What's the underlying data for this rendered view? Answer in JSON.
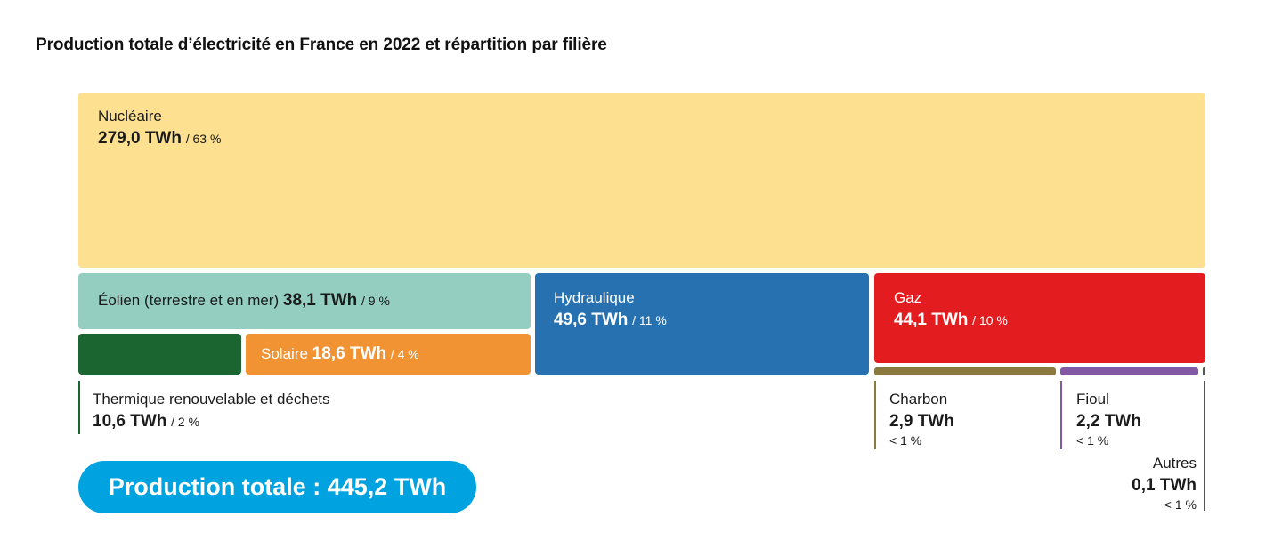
{
  "title": "Production totale d’électricité en France en 2022 et répartition par filière",
  "total": {
    "label": "Production totale :",
    "value": "445,2 TWh"
  },
  "colors": {
    "nucleaire": "#fde190",
    "eolien": "#93cec1",
    "thermique": "#1b6630",
    "solaire": "#f29333",
    "hydraulique": "#2771b0",
    "gaz": "#e31d1f",
    "charbon": "#8b7a3d",
    "fioul": "#8259a4",
    "autres": "#555555",
    "total": "#00a3e0"
  },
  "chart_data": {
    "type": "treemap",
    "title": "Production totale d’électricité en France en 2022 et répartition par filière",
    "unit": "TWh",
    "total": 445.2,
    "items": [
      {
        "key": "nucleaire",
        "name": "Nucléaire",
        "value": 279.0,
        "value_label": "279,0 TWh",
        "share": "/ 63 %"
      },
      {
        "key": "eolien",
        "name": "Éolien (terrestre et en mer)",
        "value": 38.1,
        "value_label": "38,1 TWh",
        "share": "/ 9 %"
      },
      {
        "key": "hydraulique",
        "name": "Hydraulique",
        "value": 49.6,
        "value_label": "49,6 TWh",
        "share": "/ 11 %"
      },
      {
        "key": "gaz",
        "name": "Gaz",
        "value": 44.1,
        "value_label": "44,1 TWh",
        "share": "/ 10 %"
      },
      {
        "key": "solaire",
        "name": "Solaire",
        "value": 18.6,
        "value_label": "18,6 TWh",
        "share": "/ 4 %"
      },
      {
        "key": "thermique",
        "name": "Thermique renouvelable et déchets",
        "value": 10.6,
        "value_label": "10,6 TWh",
        "share": "/ 2 %"
      },
      {
        "key": "charbon",
        "name": "Charbon",
        "value": 2.9,
        "value_label": "2,9 TWh",
        "share": "< 1 %"
      },
      {
        "key": "fioul",
        "name": "Fioul",
        "value": 2.2,
        "value_label": "2,2 TWh",
        "share": "< 1 %"
      },
      {
        "key": "autres",
        "name": "Autres",
        "value": 0.1,
        "value_label": "0,1 TWh",
        "share": "< 1 %"
      }
    ]
  }
}
